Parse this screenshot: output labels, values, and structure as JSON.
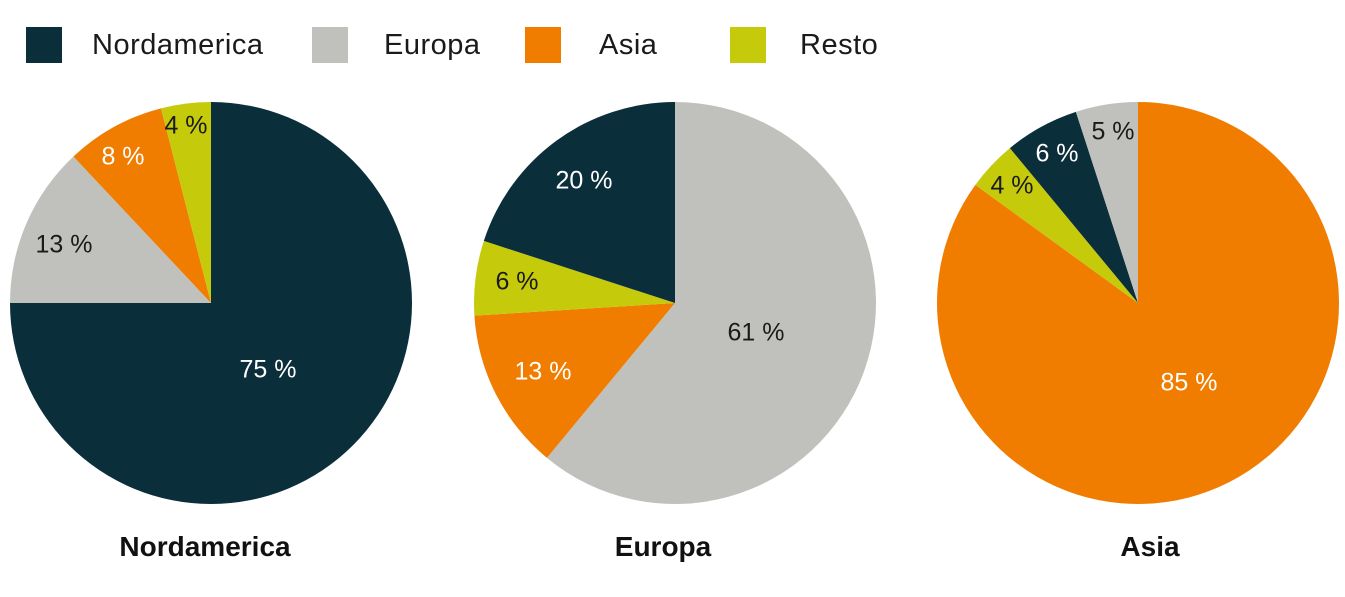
{
  "colors": {
    "Nordamerica": "#0b2e3b",
    "Europa": "#c0c0bc",
    "Asia": "#f07d00",
    "Resto": "#c5cb0b"
  },
  "legend": [
    {
      "label": "Nordamerica",
      "key": "Nordamerica"
    },
    {
      "label": "Europa",
      "key": "Europa"
    },
    {
      "label": "Asia",
      "key": "Asia"
    },
    {
      "label": "Resto",
      "key": "Resto"
    }
  ],
  "chart_data": [
    {
      "type": "pie",
      "title": "Nordamerica",
      "slices": [
        {
          "category": "Nordamerica",
          "value": 75,
          "label": "75 %"
        },
        {
          "category": "Europa",
          "value": 13,
          "label": "13 %"
        },
        {
          "category": "Asia",
          "value": 8,
          "label": "8 %"
        },
        {
          "category": "Resto",
          "value": 4,
          "label": "4 %"
        }
      ]
    },
    {
      "type": "pie",
      "title": "Europa",
      "slices": [
        {
          "category": "Europa",
          "value": 61,
          "label": "61 %"
        },
        {
          "category": "Asia",
          "value": 13,
          "label": "13 %"
        },
        {
          "category": "Resto",
          "value": 6,
          "label": "6 %"
        },
        {
          "category": "Nordamerica",
          "value": 20,
          "label": "20 %"
        }
      ]
    },
    {
      "type": "pie",
      "title": "Asia",
      "slices": [
        {
          "category": "Asia",
          "value": 85,
          "label": "85 %"
        },
        {
          "category": "Resto",
          "value": 4,
          "label": "4 %"
        },
        {
          "category": "Nordamerica",
          "value": 6,
          "label": "6 %"
        },
        {
          "category": "Europa",
          "value": 5,
          "label": "5 %"
        }
      ]
    }
  ]
}
